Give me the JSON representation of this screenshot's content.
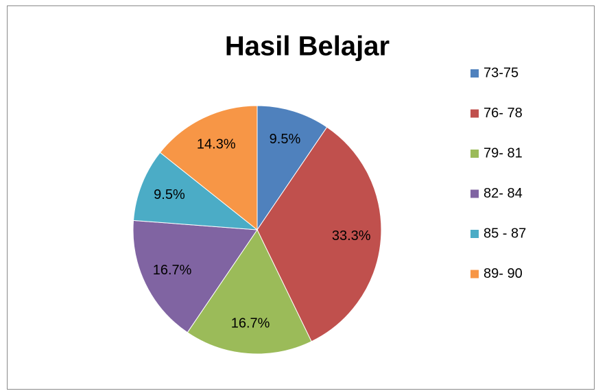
{
  "chart_data": {
    "type": "pie",
    "title": "Hasil Belajar",
    "categories": [
      "73-75",
      "76- 78",
      "79- 81",
      "82- 84",
      "85 - 87",
      "89- 90"
    ],
    "values": [
      9.5,
      33.3,
      16.7,
      16.7,
      9.5,
      14.3
    ],
    "value_labels": [
      "9.5%",
      "33.3%",
      "16.7%",
      "16.7%",
      "9.5%",
      "14.3%"
    ],
    "colors": [
      "#4F81BD",
      "#C0504D",
      "#9BBB59",
      "#8064A2",
      "#4BACC6",
      "#F79646"
    ],
    "legend": "right"
  }
}
